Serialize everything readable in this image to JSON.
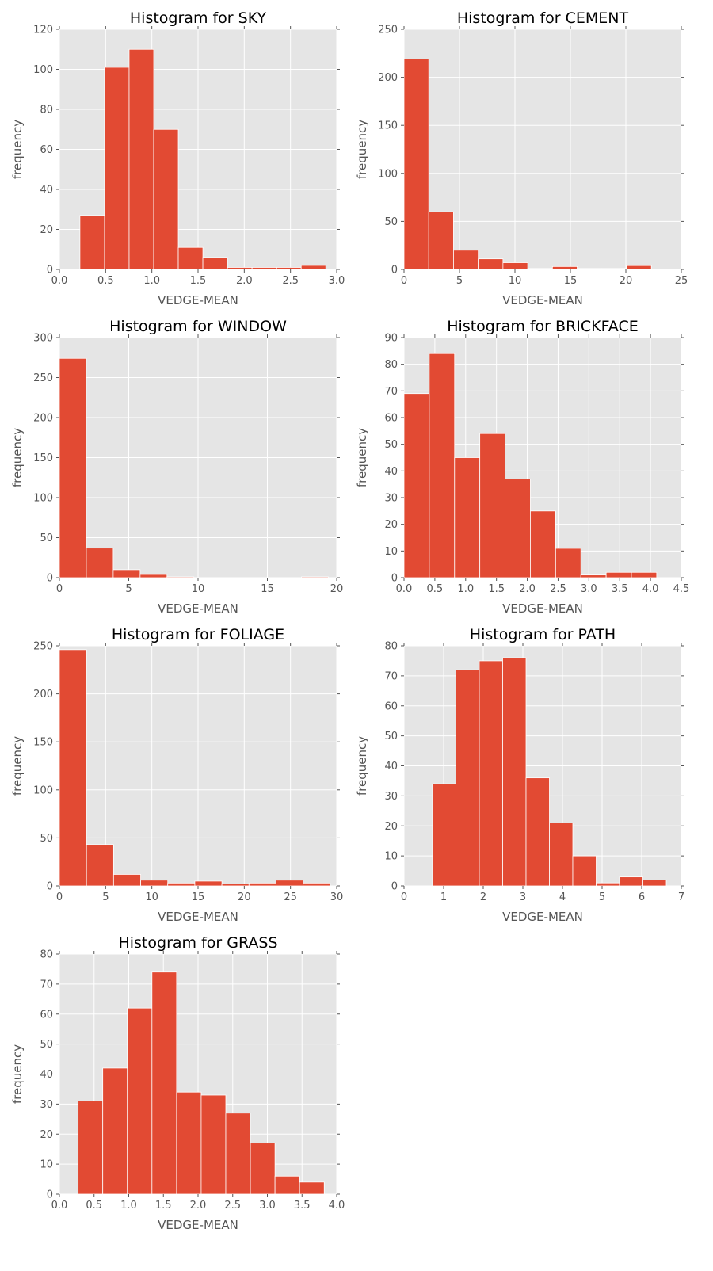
{
  "chart_data": [
    {
      "type": "bar",
      "title": "Histogram for SKY",
      "xlabel": "VEDGE-MEAN",
      "ylabel": "frequency",
      "xlim": [
        0,
        3
      ],
      "ylim": [
        0,
        120
      ],
      "xticks": [
        0,
        0.5,
        1,
        1.5,
        2,
        2.5,
        3
      ],
      "xtick_labels": [
        "0.0",
        "0.5",
        "1.0",
        "1.5",
        "2.0",
        "2.5",
        "3.0"
      ],
      "yticks": [
        0,
        20,
        40,
        60,
        80,
        100,
        120
      ],
      "ytick_labels": [
        "0",
        "20",
        "40",
        "60",
        "80",
        "100",
        "120"
      ],
      "bin_edges": [
        0.222,
        0.488,
        0.754,
        1.02,
        1.286,
        1.552,
        1.818,
        2.084,
        2.35,
        2.616,
        2.882
      ],
      "values": [
        27,
        101,
        110,
        70,
        11,
        6,
        1,
        1,
        1,
        2
      ],
      "grid": true,
      "color": "#e24a33"
    },
    {
      "type": "bar",
      "title": "Histogram for CEMENT",
      "xlabel": "VEDGE-MEAN",
      "ylabel": "frequency",
      "xlim": [
        0,
        25
      ],
      "ylim": [
        0,
        250
      ],
      "xticks": [
        0,
        5,
        10,
        15,
        20,
        25
      ],
      "xtick_labels": [
        "0",
        "5",
        "10",
        "15",
        "20",
        "25"
      ],
      "yticks": [
        0,
        50,
        100,
        150,
        200,
        250
      ],
      "ytick_labels": [
        "0",
        "50",
        "100",
        "150",
        "200",
        "250"
      ],
      "bin_edges": [
        0,
        2.23,
        4.46,
        6.69,
        8.92,
        11.15,
        13.38,
        15.61,
        17.84,
        20.07,
        22.3
      ],
      "values": [
        219,
        60,
        20,
        11,
        7,
        1,
        3,
        1,
        1,
        4
      ],
      "grid": true,
      "color": "#e24a33"
    },
    {
      "type": "bar",
      "title": "Histogram for WINDOW",
      "xlabel": "VEDGE-MEAN",
      "ylabel": "frequency",
      "xlim": [
        0,
        20
      ],
      "ylim": [
        0,
        300
      ],
      "xticks": [
        0,
        5,
        10,
        15,
        20
      ],
      "xtick_labels": [
        "0",
        "5",
        "10",
        "15",
        "20"
      ],
      "yticks": [
        0,
        50,
        100,
        150,
        200,
        250,
        300
      ],
      "ytick_labels": [
        "0",
        "50",
        "100",
        "150",
        "200",
        "250",
        "300"
      ],
      "bin_edges": [
        0,
        1.94,
        3.88,
        5.82,
        7.76,
        9.7,
        11.64,
        13.58,
        15.52,
        17.46,
        19.4
      ],
      "values": [
        274,
        37,
        10,
        4,
        1,
        0,
        0,
        0,
        0,
        1
      ],
      "grid": true,
      "color": "#e24a33"
    },
    {
      "type": "bar",
      "title": "Histogram for BRICKFACE",
      "xlabel": "VEDGE-MEAN",
      "ylabel": "frequency",
      "xlim": [
        0,
        4.5
      ],
      "ylim": [
        0,
        90
      ],
      "xticks": [
        0,
        0.5,
        1,
        1.5,
        2,
        2.5,
        3,
        3.5,
        4,
        4.5
      ],
      "xtick_labels": [
        "0.0",
        "0.5",
        "1.0",
        "1.5",
        "2.0",
        "2.5",
        "3.0",
        "3.5",
        "4.0",
        "4.5"
      ],
      "yticks": [
        0,
        10,
        20,
        30,
        40,
        50,
        60,
        70,
        80,
        90
      ],
      "ytick_labels": [
        "0",
        "10",
        "20",
        "30",
        "40",
        "50",
        "60",
        "70",
        "80",
        "90"
      ],
      "bin_edges": [
        0,
        0.41,
        0.82,
        1.23,
        1.64,
        2.05,
        2.46,
        2.87,
        3.28,
        3.69,
        4.1
      ],
      "values": [
        69,
        84,
        45,
        54,
        37,
        25,
        11,
        1,
        2,
        2
      ],
      "grid": true,
      "color": "#e24a33"
    },
    {
      "type": "bar",
      "title": "Histogram for FOLIAGE",
      "xlabel": "VEDGE-MEAN",
      "ylabel": "frequency",
      "xlim": [
        0,
        30
      ],
      "ylim": [
        0,
        250
      ],
      "xticks": [
        0,
        5,
        10,
        15,
        20,
        25,
        30
      ],
      "xtick_labels": [
        "0",
        "5",
        "10",
        "15",
        "20",
        "25",
        "30"
      ],
      "yticks": [
        0,
        50,
        100,
        150,
        200,
        250
      ],
      "ytick_labels": [
        "0",
        "50",
        "100",
        "150",
        "200",
        "250"
      ],
      "bin_edges": [
        0,
        2.93,
        5.86,
        8.79,
        11.72,
        14.65,
        17.58,
        20.51,
        23.44,
        26.37,
        29.3
      ],
      "values": [
        246,
        43,
        12,
        6,
        3,
        5,
        2,
        3,
        6,
        3
      ],
      "grid": true,
      "color": "#e24a33"
    },
    {
      "type": "bar",
      "title": "Histogram for PATH",
      "xlabel": "VEDGE-MEAN",
      "ylabel": "frequency",
      "xlim": [
        0,
        7
      ],
      "ylim": [
        0,
        80
      ],
      "xticks": [
        0,
        1,
        2,
        3,
        4,
        5,
        6,
        7
      ],
      "xtick_labels": [
        "0",
        "1",
        "2",
        "3",
        "4",
        "5",
        "6",
        "7"
      ],
      "yticks": [
        0,
        10,
        20,
        30,
        40,
        50,
        60,
        70,
        80
      ],
      "ytick_labels": [
        "0",
        "10",
        "20",
        "30",
        "40",
        "50",
        "60",
        "70",
        "80"
      ],
      "bin_edges": [
        0.72,
        1.31,
        1.9,
        2.49,
        3.08,
        3.67,
        4.26,
        4.85,
        5.44,
        6.03,
        6.62
      ],
      "values": [
        34,
        72,
        75,
        76,
        36,
        21,
        10,
        1,
        3,
        2
      ],
      "grid": true,
      "color": "#e24a33"
    },
    {
      "type": "bar",
      "title": "Histogram for GRASS",
      "xlabel": "VEDGE-MEAN",
      "ylabel": "frequency",
      "xlim": [
        0,
        4
      ],
      "ylim": [
        0,
        80
      ],
      "xticks": [
        0,
        0.5,
        1,
        1.5,
        2,
        2.5,
        3,
        3.5,
        4
      ],
      "xtick_labels": [
        "0.0",
        "0.5",
        "1.0",
        "1.5",
        "2.0",
        "2.5",
        "3.0",
        "3.5",
        "4.0"
      ],
      "yticks": [
        0,
        10,
        20,
        30,
        40,
        50,
        60,
        70,
        80
      ],
      "ytick_labels": [
        "0",
        "10",
        "20",
        "30",
        "40",
        "50",
        "60",
        "70",
        "80"
      ],
      "bin_edges": [
        0.27,
        0.625,
        0.98,
        1.335,
        1.69,
        2.045,
        2.4,
        2.755,
        3.11,
        3.465,
        3.82
      ],
      "values": [
        31,
        42,
        62,
        74,
        34,
        33,
        27,
        17,
        6,
        4
      ],
      "grid": true,
      "color": "#e24a33"
    }
  ]
}
